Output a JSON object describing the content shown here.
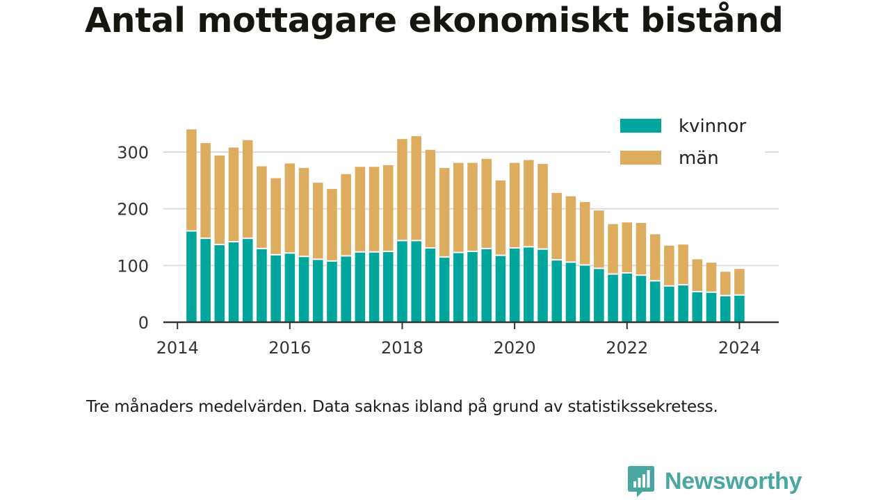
{
  "title": "Antal mottagare ekonomiskt bistånd",
  "caption": "Tre månaders medelvärden. Data saknas ibland på grund av statistikssekretess.",
  "logo": {
    "icon": "bar-chart-speech-bubble-icon",
    "text": "Newsworthy"
  },
  "chart_data": {
    "type": "bar",
    "stacked": true,
    "x_ticks": [
      "2014",
      "2016",
      "2018",
      "2020",
      "2022",
      "2024"
    ],
    "y_ticks": [
      "0",
      "100",
      "200",
      "300"
    ],
    "ylim": [
      0,
      360
    ],
    "xlim": [
      2013.75,
      2024.7
    ],
    "grid": true,
    "legend_placement": "top-right",
    "x": [
      2014.25,
      2014.5,
      2014.75,
      2015.0,
      2015.25,
      2015.5,
      2015.75,
      2016.0,
      2016.25,
      2016.5,
      2016.75,
      2017.0,
      2017.25,
      2017.5,
      2017.75,
      2018.0,
      2018.25,
      2018.5,
      2018.75,
      2019.0,
      2019.25,
      2019.5,
      2019.75,
      2020.0,
      2020.25,
      2020.5,
      2020.75,
      2021.0,
      2021.25,
      2021.5,
      2021.75,
      2022.0,
      2022.25,
      2022.5,
      2022.75,
      2023.0,
      2023.25,
      2023.5,
      2023.75,
      2024.0
    ],
    "series": [
      {
        "name": "kvinnor",
        "color": "#00a69c",
        "values": [
          161,
          148,
          137,
          142,
          148,
          130,
          119,
          122,
          116,
          111,
          108,
          117,
          124,
          124,
          125,
          144,
          144,
          131,
          115,
          123,
          125,
          130,
          118,
          131,
          133,
          129,
          110,
          106,
          101,
          95,
          85,
          87,
          83,
          73,
          64,
          66,
          54,
          53,
          47,
          48
        ]
      },
      {
        "name": "män",
        "color": "#dcad5e",
        "values": [
          179,
          168,
          157,
          166,
          173,
          145,
          135,
          158,
          156,
          135,
          127,
          144,
          150,
          150,
          152,
          179,
          184,
          173,
          157,
          158,
          156,
          158,
          132,
          150,
          153,
          150,
          118,
          116,
          111,
          102,
          88,
          89,
          92,
          82,
          71,
          71,
          57,
          52,
          42,
          46
        ]
      }
    ]
  }
}
